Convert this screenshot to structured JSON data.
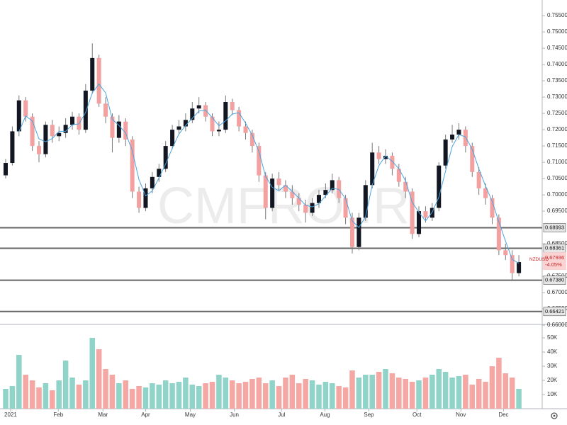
{
  "chart_data": {
    "type": "candlestick",
    "watermark": "CMFRO.IR",
    "symbol": "NZDUSD",
    "last_price": 0.67936,
    "change": {
      "value": -4.05,
      "label": "-4.05%"
    },
    "up_color": "#131722",
    "down_color": "#f2a0a0",
    "wick_color": "#777777",
    "ma_color": "#4aa3df",
    "volume_up_color": "#8fd3c9",
    "volume_down_color": "#f5a7a3",
    "xlim": [
      -0.85,
      80.5
    ],
    "xticks": [
      {
        "value": 0.74,
        "label": "2021"
      },
      {
        "value": 7.9,
        "label": "Feb"
      },
      {
        "value": 14.6,
        "label": "Mar"
      },
      {
        "value": 21.0,
        "label": "Apr"
      },
      {
        "value": 27.7,
        "label": "May"
      },
      {
        "value": 34.3,
        "label": "Jun"
      },
      {
        "value": 41.4,
        "label": "Jul"
      },
      {
        "value": 47.9,
        "label": "Aug"
      },
      {
        "value": 54.5,
        "label": "Sep"
      },
      {
        "value": 61.7,
        "label": "Oct"
      },
      {
        "value": 68.3,
        "label": "Nov"
      },
      {
        "value": 74.7,
        "label": "Dec"
      }
    ],
    "ylim": [
      0.6609,
      0.7598
    ],
    "yticks": [
      {
        "value": 0.755,
        "label": "0.75500"
      },
      {
        "value": 0.75,
        "label": "0.75000"
      },
      {
        "value": 0.745,
        "label": "0.74500"
      },
      {
        "value": 0.74,
        "label": "0.74000"
      },
      {
        "value": 0.735,
        "label": "0.73500"
      },
      {
        "value": 0.73,
        "label": "0.73000"
      },
      {
        "value": 0.725,
        "label": "0.72500"
      },
      {
        "value": 0.72,
        "label": "0.72000"
      },
      {
        "value": 0.715,
        "label": "0.71500"
      },
      {
        "value": 0.71,
        "label": "0.71000"
      },
      {
        "value": 0.705,
        "label": "0.70500"
      },
      {
        "value": 0.7,
        "label": "0.70000"
      },
      {
        "value": 0.695,
        "label": "0.69500"
      },
      {
        "value": 0.685,
        "label": "0.68500"
      },
      {
        "value": 0.675,
        "label": "0.67500"
      },
      {
        "value": 0.67,
        "label": "0.67000"
      },
      {
        "value": 0.665,
        "label": "0.66500"
      },
      {
        "value": 0.66,
        "label": "0.66000"
      }
    ],
    "levels": [
      0.68993,
      0.68361,
      0.6738,
      0.66421
    ],
    "level_labels": [
      "0.68993",
      "0.68361",
      "0.67380",
      "0.66421"
    ],
    "open": [
      0.706,
      0.7098,
      0.7195,
      0.729,
      0.724,
      0.715,
      0.7125,
      0.7215,
      0.718,
      0.719,
      0.7215,
      0.724,
      0.72,
      0.732,
      0.742,
      0.728,
      0.724,
      0.7175,
      0.7225,
      0.717,
      0.701,
      0.696,
      0.702,
      0.7055,
      0.708,
      0.715,
      0.72,
      0.721,
      0.723,
      0.7265,
      0.7275,
      0.724,
      0.7195,
      0.72,
      0.7285,
      0.726,
      0.721,
      0.719,
      0.715,
      0.706,
      0.696,
      0.705,
      0.703,
      0.701,
      0.699,
      0.697,
      0.6945,
      0.6975,
      0.7,
      0.7015,
      0.7045,
      0.699,
      0.693,
      0.684,
      0.693,
      0.703,
      0.713,
      0.711,
      0.712,
      0.708,
      0.704,
      0.701,
      0.688,
      0.695,
      0.693,
      0.696,
      0.709,
      0.717,
      0.7185,
      0.72,
      0.715,
      0.707,
      0.702,
      0.699,
      0.693,
      0.683,
      0.6815,
      0.676
    ],
    "high": [
      0.711,
      0.721,
      0.7305,
      0.73,
      0.725,
      0.7165,
      0.7225,
      0.723,
      0.721,
      0.7235,
      0.7255,
      0.725,
      0.734,
      0.7465,
      0.743,
      0.73,
      0.725,
      0.7245,
      0.7235,
      0.718,
      0.7025,
      0.7035,
      0.707,
      0.7095,
      0.7165,
      0.7215,
      0.723,
      0.725,
      0.7285,
      0.73,
      0.7285,
      0.725,
      0.7225,
      0.7305,
      0.7295,
      0.727,
      0.7225,
      0.72,
      0.716,
      0.707,
      0.7065,
      0.707,
      0.7045,
      0.703,
      0.7005,
      0.6985,
      0.699,
      0.7015,
      0.7035,
      0.7065,
      0.7055,
      0.7,
      0.6945,
      0.6945,
      0.7045,
      0.716,
      0.715,
      0.714,
      0.713,
      0.7095,
      0.7055,
      0.702,
      0.6965,
      0.6965,
      0.6975,
      0.71,
      0.7185,
      0.7215,
      0.722,
      0.721,
      0.716,
      0.7085,
      0.7035,
      0.7,
      0.694,
      0.685,
      0.683,
      0.6815
    ],
    "low": [
      0.705,
      0.709,
      0.718,
      0.7225,
      0.7135,
      0.71,
      0.7115,
      0.716,
      0.7165,
      0.7175,
      0.72,
      0.7185,
      0.719,
      0.731,
      0.727,
      0.722,
      0.713,
      0.716,
      0.715,
      0.699,
      0.6945,
      0.695,
      0.7005,
      0.704,
      0.707,
      0.714,
      0.7185,
      0.7195,
      0.722,
      0.725,
      0.7225,
      0.718,
      0.718,
      0.719,
      0.7245,
      0.7195,
      0.717,
      0.713,
      0.704,
      0.6925,
      0.695,
      0.7015,
      0.699,
      0.697,
      0.695,
      0.6915,
      0.6935,
      0.696,
      0.699,
      0.7005,
      0.6975,
      0.691,
      0.682,
      0.683,
      0.692,
      0.702,
      0.7095,
      0.7095,
      0.706,
      0.7025,
      0.699,
      0.6865,
      0.687,
      0.6915,
      0.692,
      0.695,
      0.708,
      0.716,
      0.717,
      0.713,
      0.7055,
      0.7,
      0.697,
      0.691,
      0.6815,
      0.68,
      0.674,
      0.675
    ],
    "close": [
      0.7098,
      0.7195,
      0.729,
      0.724,
      0.715,
      0.7125,
      0.7215,
      0.718,
      0.719,
      0.7215,
      0.724,
      0.72,
      0.732,
      0.742,
      0.728,
      0.724,
      0.7175,
      0.7225,
      0.717,
      0.701,
      0.696,
      0.702,
      0.7055,
      0.708,
      0.715,
      0.72,
      0.721,
      0.723,
      0.7265,
      0.7275,
      0.724,
      0.7195,
      0.72,
      0.7285,
      0.726,
      0.721,
      0.719,
      0.715,
      0.706,
      0.696,
      0.705,
      0.703,
      0.701,
      0.699,
      0.697,
      0.6945,
      0.6975,
      0.7,
      0.7015,
      0.7045,
      0.699,
      0.693,
      0.684,
      0.693,
      0.703,
      0.713,
      0.711,
      0.712,
      0.708,
      0.704,
      0.701,
      0.688,
      0.695,
      0.693,
      0.696,
      0.709,
      0.717,
      0.7185,
      0.72,
      0.715,
      0.707,
      0.702,
      0.699,
      0.693,
      0.683,
      0.6815,
      0.676,
      0.67936
    ],
    "ma": [
      null,
      null,
      0.7194,
      0.7242,
      0.7227,
      0.7172,
      0.7163,
      0.7173,
      0.7195,
      0.7195,
      0.7215,
      0.7218,
      0.7253,
      0.7313,
      0.734,
      0.7313,
      0.7232,
      0.7213,
      0.719,
      0.7135,
      0.7047,
      0.6997,
      0.7012,
      0.7052,
      0.7095,
      0.7143,
      0.7187,
      0.7213,
      0.7235,
      0.7257,
      0.726,
      0.7237,
      0.7212,
      0.7227,
      0.7248,
      0.7252,
      0.722,
      0.7183,
      0.7133,
      0.7057,
      0.7023,
      0.7013,
      0.703,
      0.701,
      0.699,
      0.6968,
      0.6963,
      0.6973,
      0.6997,
      0.702,
      0.7017,
      0.6988,
      0.692,
      0.69,
      0.6933,
      0.703,
      0.709,
      0.712,
      0.7103,
      0.708,
      0.7043,
      0.6977,
      0.6947,
      0.692,
      0.6947,
      0.6993,
      0.7073,
      0.7148,
      0.7185,
      0.7178,
      0.714,
      0.708,
      0.7027,
      0.698,
      0.6917,
      0.6858,
      0.6802,
      0.679
    ],
    "volume": [
      14000,
      16000,
      38000,
      24000,
      20000,
      15000,
      18000,
      13000,
      20000,
      34000,
      22000,
      17000,
      20000,
      50000,
      42000,
      28000,
      24000,
      18000,
      20000,
      14000,
      16000,
      15000,
      18000,
      17000,
      20000,
      18000,
      19000,
      22000,
      17000,
      16000,
      18000,
      19000,
      24000,
      22000,
      20000,
      18000,
      19000,
      21000,
      22000,
      18000,
      20000,
      16000,
      22000,
      24000,
      18000,
      21000,
      20000,
      17000,
      19000,
      18000,
      16000,
      15000,
      27000,
      22000,
      24000,
      24000,
      26000,
      28000,
      25000,
      22000,
      21000,
      19000,
      20000,
      22000,
      24000,
      28000,
      26000,
      22000,
      23000,
      24000,
      17000,
      21000,
      19000,
      30000,
      36000,
      25000,
      22000,
      14000
    ],
    "volume_ylim": [
      0,
      58500
    ],
    "volume_yticks": [
      {
        "value": 10000,
        "label": "10K"
      },
      {
        "value": 20000,
        "label": "20K"
      },
      {
        "value": 30000,
        "label": "30K"
      },
      {
        "value": 40000,
        "label": "40K"
      },
      {
        "value": 50000,
        "label": "50K"
      }
    ]
  }
}
